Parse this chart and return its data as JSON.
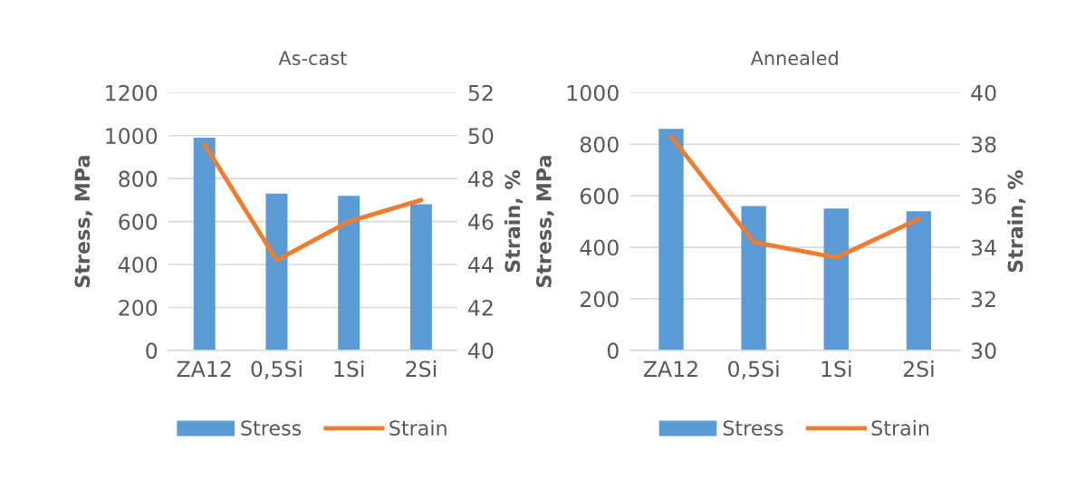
{
  "chart_data": [
    {
      "type": "bar",
      "title": "As-cast",
      "ylabel": "Stress, MPa",
      "y2label": "Strain, %",
      "categories": [
        "ZA12",
        "0,5Si",
        "1Si",
        "2Si"
      ],
      "series": [
        {
          "name": "Stress",
          "color": "#5b9bd5",
          "values": [
            990,
            730,
            720,
            680
          ]
        },
        {
          "name": "Strain",
          "type": "line",
          "axis": "y2",
          "color": "#ed7d31",
          "values": [
            49.6,
            44.2,
            46.0,
            47.0
          ]
        }
      ],
      "ylim": [
        0,
        1200
      ],
      "yticks": [
        0,
        200,
        400,
        600,
        800,
        1000,
        1200
      ],
      "y2lim": [
        40,
        52
      ],
      "y2ticks": [
        40,
        42,
        44,
        46,
        48,
        50,
        52
      ],
      "grid": "y",
      "legend": "bottom"
    },
    {
      "type": "bar",
      "title": "Annealed",
      "ylabel": "Stress, MPa",
      "y2label": "Strain, %",
      "categories": [
        "ZA12",
        "0,5Si",
        "1Si",
        "2Si"
      ],
      "series": [
        {
          "name": "Stress",
          "color": "#5b9bd5",
          "values": [
            860,
            560,
            550,
            540
          ]
        },
        {
          "name": "Strain",
          "type": "line",
          "axis": "y2",
          "color": "#ed7d31",
          "values": [
            38.3,
            34.2,
            33.6,
            35.1
          ]
        }
      ],
      "ylim": [
        0,
        1000
      ],
      "yticks": [
        0,
        200,
        400,
        600,
        800,
        1000
      ],
      "y2lim": [
        30,
        40
      ],
      "y2ticks": [
        30,
        32,
        34,
        36,
        38,
        40
      ],
      "grid": "y",
      "legend": "bottom"
    }
  ]
}
